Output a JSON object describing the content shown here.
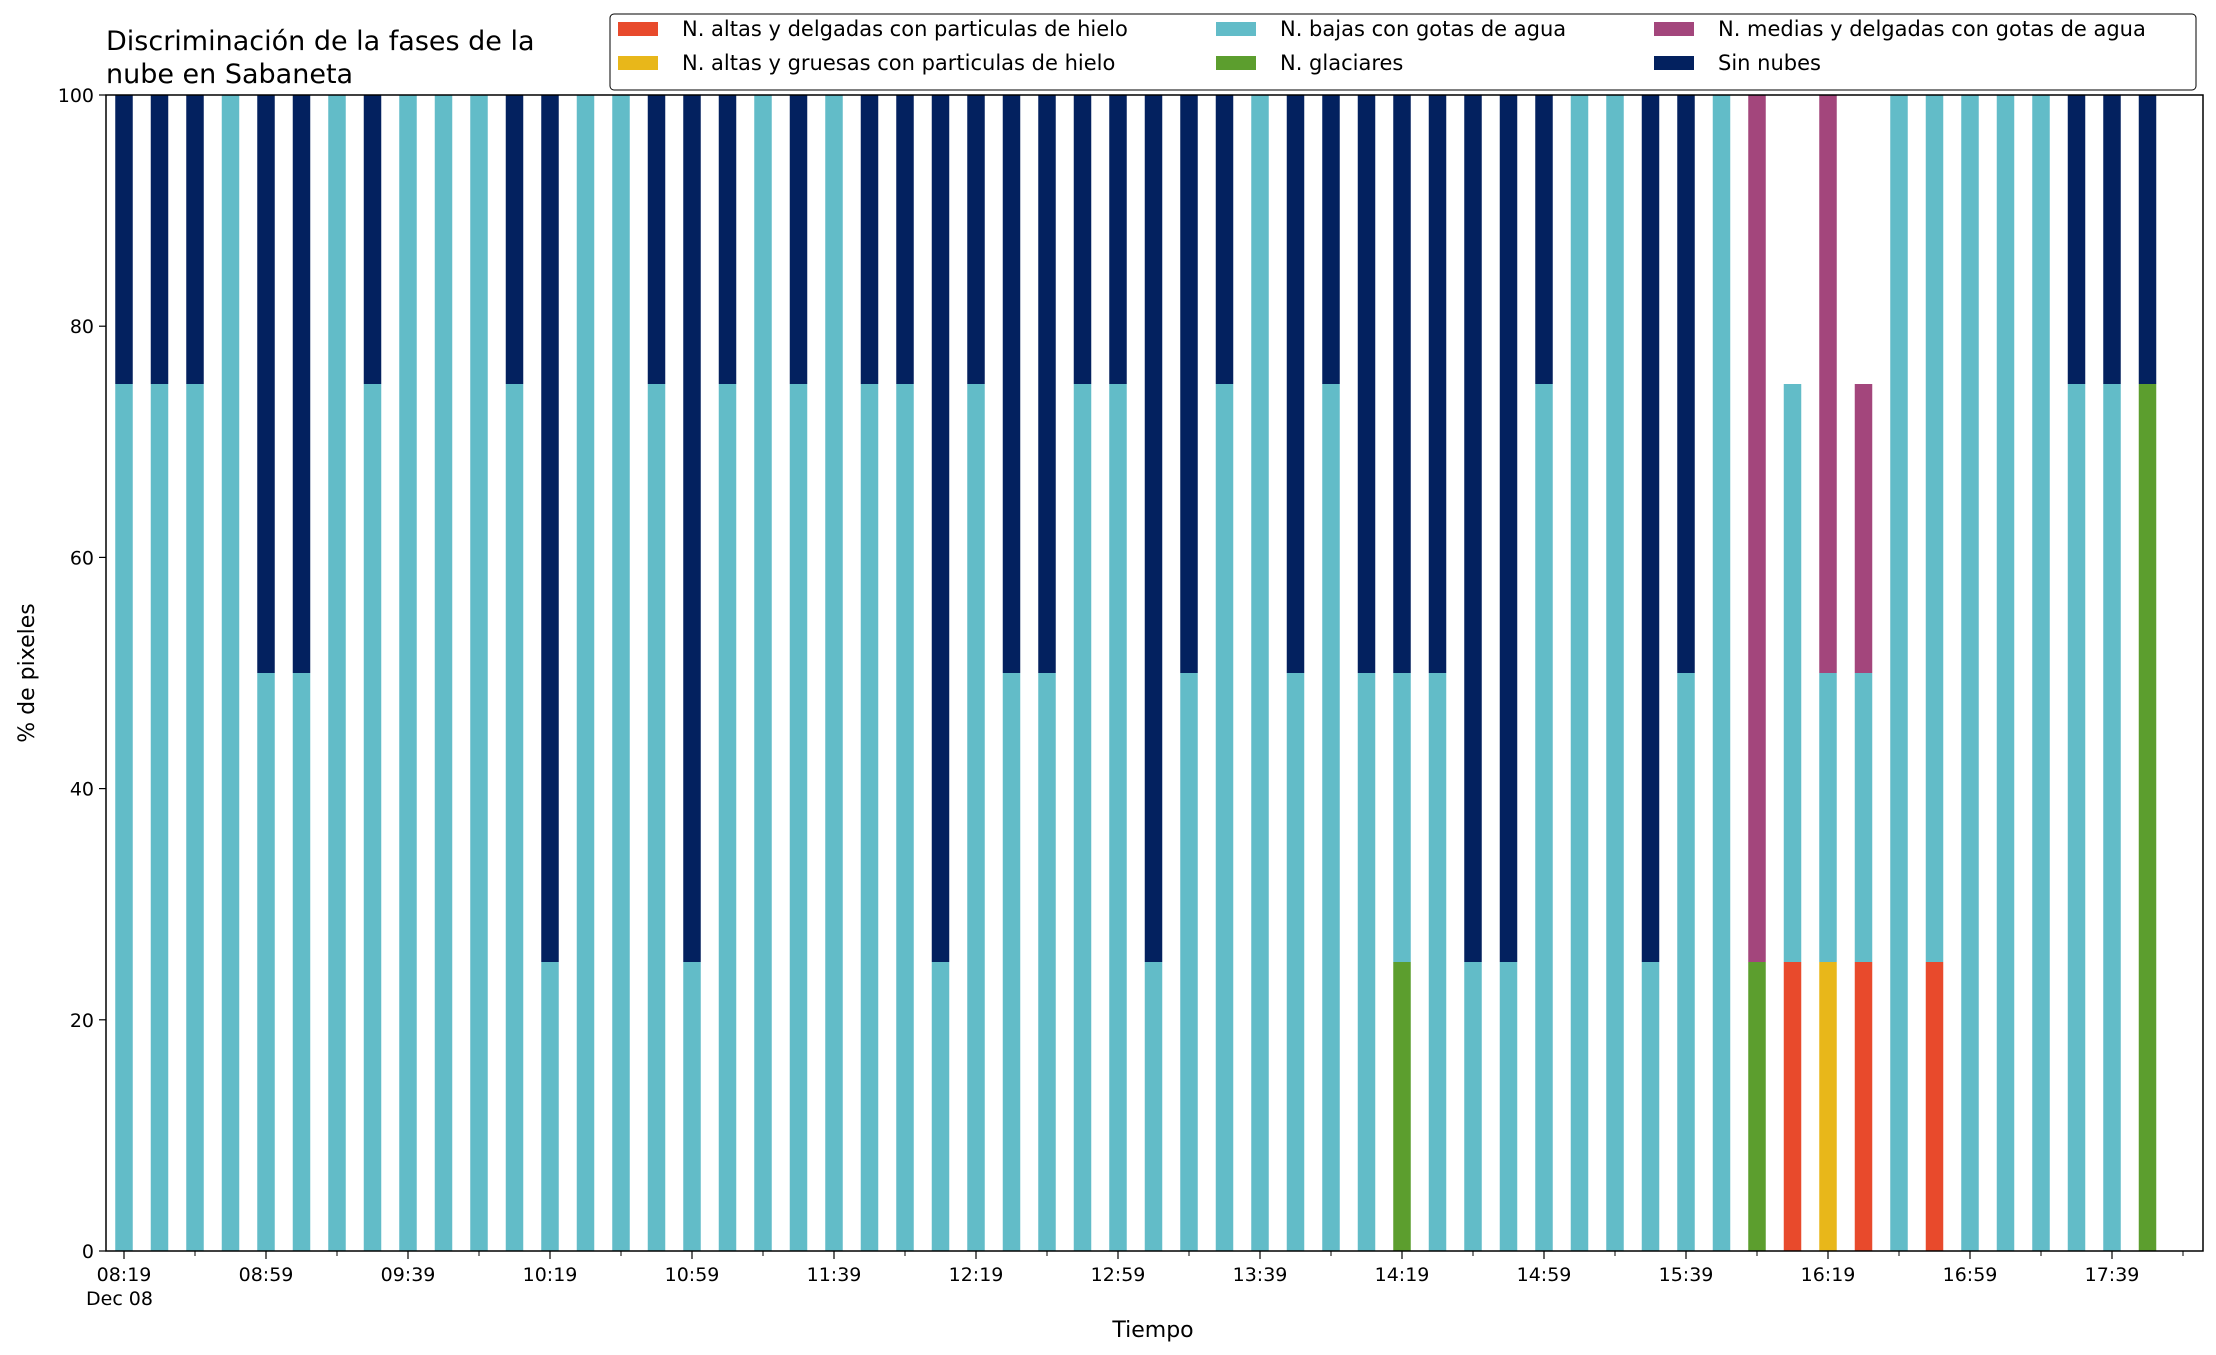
{
  "chart_data": {
    "type": "bar",
    "stacked": true,
    "title_lines": [
      "Discriminación de la fases de la",
      "nube en Sabaneta"
    ],
    "xlabel": "Tiempo",
    "ylabel": "% de pixeles",
    "ylim": [
      0,
      100
    ],
    "yticks": [
      0,
      20,
      40,
      60,
      80,
      100
    ],
    "xtick_labels": [
      "08:19",
      "08:59",
      "09:39",
      "10:19",
      "10:59",
      "11:39",
      "12:19",
      "12:59",
      "13:39",
      "14:19",
      "14:59",
      "15:39",
      "16:19",
      "16:59",
      "17:39"
    ],
    "xtick_positions": [
      0,
      4,
      8,
      12,
      16,
      20,
      24,
      28,
      32,
      36,
      40,
      44,
      48,
      52,
      56
    ],
    "xdate_label": "Dec 08",
    "grid": false,
    "legend_position": "top-right",
    "categories_count": 58,
    "series": [
      {
        "name": "N. altas y delgadas con particulas de hielo",
        "color": "#e84a2c",
        "values": [
          0,
          0,
          0,
          0,
          0,
          0,
          0,
          0,
          0,
          0,
          0,
          0,
          0,
          0,
          0,
          0,
          0,
          0,
          0,
          0,
          0,
          0,
          0,
          0,
          0,
          0,
          0,
          0,
          0,
          0,
          0,
          0,
          0,
          0,
          0,
          0,
          0,
          0,
          0,
          0,
          0,
          0,
          0,
          0,
          0,
          0,
          0,
          25,
          0,
          25,
          0,
          25,
          0,
          0,
          0,
          0,
          0,
          0
        ]
      },
      {
        "name": "N. altas y gruesas con particulas de hielo",
        "color": "#e8b71a",
        "values": [
          0,
          0,
          0,
          0,
          0,
          0,
          0,
          0,
          0,
          0,
          0,
          0,
          0,
          0,
          0,
          0,
          0,
          0,
          0,
          0,
          0,
          0,
          0,
          0,
          0,
          0,
          0,
          0,
          0,
          0,
          0,
          0,
          0,
          0,
          0,
          0,
          0,
          0,
          0,
          0,
          0,
          0,
          0,
          0,
          0,
          0,
          0,
          0,
          25,
          0,
          0,
          0,
          0,
          0,
          0,
          0,
          0,
          0
        ]
      },
      {
        "name": "N. glaciares",
        "color": "#5c9e2e",
        "values": [
          0,
          0,
          0,
          0,
          0,
          0,
          0,
          0,
          0,
          0,
          0,
          0,
          0,
          0,
          0,
          0,
          0,
          0,
          0,
          0,
          0,
          0,
          0,
          0,
          0,
          0,
          0,
          0,
          0,
          0,
          0,
          0,
          0,
          0,
          0,
          0,
          25,
          0,
          0,
          0,
          0,
          0,
          0,
          0,
          0,
          0,
          25,
          0,
          0,
          0,
          0,
          0,
          0,
          0,
          0,
          0,
          0,
          75
        ]
      },
      {
        "name": "N. bajas con gotas de agua",
        "color": "#62bcc8",
        "values": [
          75,
          75,
          75,
          100,
          50,
          50,
          100,
          75,
          100,
          100,
          100,
          75,
          25,
          100,
          100,
          75,
          25,
          75,
          100,
          75,
          100,
          75,
          75,
          25,
          75,
          50,
          50,
          75,
          75,
          25,
          50,
          75,
          100,
          50,
          75,
          50,
          25,
          50,
          25,
          25,
          75,
          100,
          100,
          25,
          50,
          100,
          0,
          50,
          25,
          25,
          100,
          75,
          100,
          100,
          100,
          75,
          75,
          0
        ]
      },
      {
        "name": "N. medias y delgadas con gotas de agua",
        "color": "#a3467c",
        "values": [
          0,
          0,
          0,
          0,
          0,
          0,
          0,
          0,
          0,
          0,
          0,
          0,
          0,
          0,
          0,
          0,
          0,
          0,
          0,
          0,
          0,
          0,
          0,
          0,
          0,
          0,
          0,
          0,
          0,
          0,
          0,
          0,
          0,
          0,
          0,
          0,
          0,
          0,
          0,
          0,
          0,
          0,
          0,
          0,
          0,
          0,
          75,
          0,
          50,
          25,
          0,
          0,
          0,
          0,
          0,
          0,
          0,
          0
        ]
      },
      {
        "name": "Sin nubes",
        "color": "#03215f",
        "values": [
          25,
          25,
          25,
          0,
          50,
          50,
          0,
          25,
          0,
          0,
          0,
          25,
          75,
          0,
          0,
          25,
          75,
          25,
          0,
          25,
          0,
          25,
          25,
          75,
          25,
          50,
          50,
          25,
          25,
          75,
          50,
          25,
          0,
          50,
          25,
          50,
          50,
          50,
          75,
          75,
          25,
          0,
          0,
          75,
          50,
          0,
          0,
          0,
          0,
          0,
          0,
          0,
          0,
          0,
          0,
          25,
          25,
          25
        ]
      }
    ],
    "legend_order": [
      0,
      1,
      3,
      2,
      4,
      5
    ]
  }
}
